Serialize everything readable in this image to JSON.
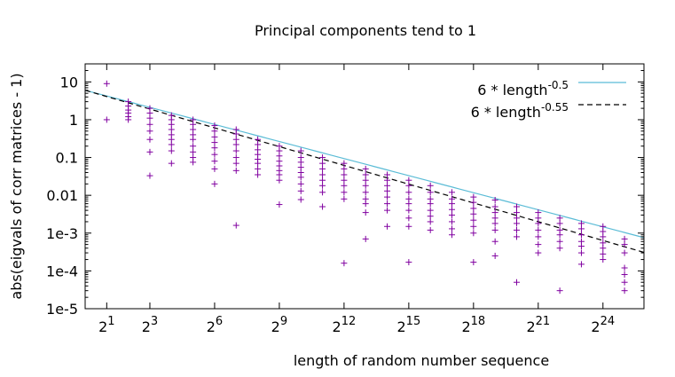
{
  "chart_data": {
    "type": "scatter",
    "title": "Principal components tend to 1",
    "xlabel": "length of random number sequence",
    "ylabel": "abs(eigvals of corr matrices - 1)",
    "x_scale": "log2",
    "y_scale": "log10",
    "xlim_log2": [
      0,
      25.9
    ],
    "ylim": [
      1e-05,
      30
    ],
    "x_ticks": [
      {
        "exp": 1,
        "base": "2",
        "sup": "1"
      },
      {
        "exp": 3,
        "base": "2",
        "sup": "3"
      },
      {
        "exp": 6,
        "base": "2",
        "sup": "6"
      },
      {
        "exp": 9,
        "base": "2",
        "sup": "9"
      },
      {
        "exp": 12,
        "base": "2",
        "sup": "12"
      },
      {
        "exp": 15,
        "base": "2",
        "sup": "15"
      },
      {
        "exp": 18,
        "base": "2",
        "sup": "18"
      },
      {
        "exp": 21,
        "base": "2",
        "sup": "21"
      },
      {
        "exp": 24,
        "base": "2",
        "sup": "24"
      }
    ],
    "y_ticks": [
      {
        "value": 10,
        "label": "10"
      },
      {
        "value": 1,
        "label": "1"
      },
      {
        "value": 0.1,
        "label": "0.1"
      },
      {
        "value": 0.01,
        "label": "0.01"
      },
      {
        "value": 0.001,
        "label": "1e-3"
      },
      {
        "value": 0.0001,
        "label": "1e-4"
      },
      {
        "value": 1e-05,
        "label": "1e-5"
      }
    ],
    "legend_position": "top-right",
    "series": [
      {
        "kind": "line",
        "label_main": "6 * length",
        "label_sup": "-0.5",
        "coefficient": 6,
        "exponent": -0.5,
        "color": "#5bbcd6",
        "dash": "solid"
      },
      {
        "kind": "line",
        "label_main": "6 * length",
        "label_sup": "-0.55",
        "coefficient": 6,
        "exponent": -0.55,
        "color": "#000000",
        "dash": "dashed"
      },
      {
        "kind": "points",
        "marker": "+",
        "color": "#8000a0",
        "points": [
          {
            "exp": 1,
            "values": [
              9,
              1
            ]
          },
          {
            "exp": 2,
            "values": [
              3,
              2.3,
              1.8,
              1.5,
              1.2,
              1.0
            ]
          },
          {
            "exp": 3,
            "values": [
              2,
              1.5,
              1.1,
              0.75,
              0.5,
              0.3,
              0.14,
              0.033
            ]
          },
          {
            "exp": 4,
            "values": [
              1.3,
              1.0,
              0.75,
              0.55,
              0.4,
              0.3,
              0.22,
              0.15,
              0.07
            ]
          },
          {
            "exp": 5,
            "values": [
              1.0,
              0.75,
              0.55,
              0.4,
              0.3,
              0.2,
              0.14,
              0.1,
              0.075
            ]
          },
          {
            "exp": 6,
            "values": [
              0.7,
              0.5,
              0.35,
              0.25,
              0.18,
              0.12,
              0.08,
              0.05,
              0.02
            ]
          },
          {
            "exp": 7,
            "values": [
              0.55,
              0.42,
              0.3,
              0.22,
              0.15,
              0.1,
              0.07,
              0.045,
              0.0016
            ]
          },
          {
            "exp": 8,
            "values": [
              0.3,
              0.22,
              0.16,
              0.12,
              0.09,
              0.07,
              0.05,
              0.035
            ]
          },
          {
            "exp": 9,
            "values": [
              0.2,
              0.15,
              0.11,
              0.08,
              0.06,
              0.045,
              0.035,
              0.025,
              0.0057
            ]
          },
          {
            "exp": 10,
            "values": [
              0.15,
              0.1,
              0.075,
              0.055,
              0.04,
              0.03,
              0.02,
              0.013,
              0.0077
            ]
          },
          {
            "exp": 11,
            "values": [
              0.1,
              0.07,
              0.05,
              0.035,
              0.025,
              0.018,
              0.012,
              0.005
            ]
          },
          {
            "exp": 12,
            "values": [
              0.07,
              0.05,
              0.035,
              0.025,
              0.018,
              0.012,
              0.008,
              0.00016
            ]
          },
          {
            "exp": 13,
            "values": [
              0.05,
              0.035,
              0.025,
              0.018,
              0.012,
              0.008,
              0.006,
              0.0035,
              0.0007
            ]
          },
          {
            "exp": 14,
            "values": [
              0.035,
              0.025,
              0.018,
              0.013,
              0.009,
              0.006,
              0.004,
              0.0015
            ]
          },
          {
            "exp": 15,
            "values": [
              0.025,
              0.018,
              0.012,
              0.008,
              0.006,
              0.004,
              0.0025,
              0.0015,
              0.00017
            ]
          },
          {
            "exp": 16,
            "values": [
              0.018,
              0.012,
              0.008,
              0.006,
              0.004,
              0.0028,
              0.002,
              0.0012
            ]
          },
          {
            "exp": 17,
            "values": [
              0.012,
              0.008,
              0.006,
              0.0042,
              0.003,
              0.002,
              0.0013,
              0.0009
            ]
          },
          {
            "exp": 18,
            "values": [
              0.009,
              0.0065,
              0.0045,
              0.0032,
              0.0022,
              0.0015,
              0.001,
              0.00017
            ]
          },
          {
            "exp": 19,
            "values": [
              0.0075,
              0.005,
              0.0035,
              0.0025,
              0.0018,
              0.0012,
              0.0006,
              0.00025
            ]
          },
          {
            "exp": 20,
            "values": [
              0.005,
              0.0035,
              0.0025,
              0.0018,
              0.0012,
              0.0008,
              5e-05
            ]
          },
          {
            "exp": 21,
            "values": [
              0.0035,
              0.0025,
              0.0018,
              0.0012,
              0.0008,
              0.0005,
              0.0003
            ]
          },
          {
            "exp": 22,
            "values": [
              0.0025,
              0.0018,
              0.0012,
              0.0009,
              0.0006,
              0.0004,
              3e-05
            ]
          },
          {
            "exp": 23,
            "values": [
              0.0018,
              0.0013,
              0.0009,
              0.0006,
              0.00045,
              0.0003,
              0.00015
            ]
          },
          {
            "exp": 24,
            "values": [
              0.0015,
              0.0011,
              0.0008,
              0.00055,
              0.0004,
              0.00028,
              0.0002
            ]
          },
          {
            "exp": 25,
            "values": [
              0.0007,
              0.0005,
              0.0003,
              0.00012,
              8e-05,
              5e-05,
              3e-05
            ]
          }
        ]
      }
    ]
  }
}
